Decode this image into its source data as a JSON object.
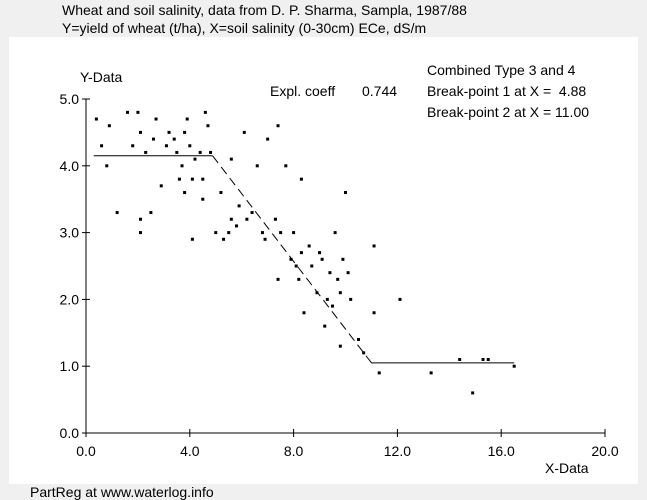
{
  "header": {
    "title_line1": "Wheat and soil salinity, data from D. P. Sharma, Sampla, 1987/88",
    "title_line2": "Y=yield of wheat (t/ha), X=soil salinity (0-30cm) ECe, dS/m"
  },
  "annotations": {
    "expl_coeff_label": "Expl. coeff",
    "expl_coeff_value": "0.744",
    "model_type": "Combined Type 3 and 4",
    "breakpoint1": "Break-point 1 at X =  4.88",
    "breakpoint2": "Break-point 2 at X = 11.00"
  },
  "footer": {
    "text": "PartReg at www.waterlog.info"
  },
  "colors": {
    "window_bg": "#f0f0f0",
    "plot_bg": "#ffffff",
    "ink": "#000000"
  },
  "chart_data": {
    "type": "scatter",
    "xlabel": "X-Data",
    "ylabel": "Y-Data",
    "xlim": [
      0,
      20
    ],
    "ylim": [
      0,
      5
    ],
    "xticks": [
      "0.0",
      "4.0",
      "8.0",
      "12.0",
      "16.0",
      "20.0"
    ],
    "yticks": [
      "0.0",
      "1.0",
      "2.0",
      "3.0",
      "4.0",
      "5.0"
    ],
    "grid": false,
    "points": [
      [
        0.4,
        4.7
      ],
      [
        0.6,
        4.3
      ],
      [
        0.8,
        4.0
      ],
      [
        0.9,
        4.6
      ],
      [
        1.2,
        3.3
      ],
      [
        1.6,
        4.8
      ],
      [
        1.8,
        4.3
      ],
      [
        2.0,
        4.8
      ],
      [
        2.1,
        4.5
      ],
      [
        2.1,
        3.2
      ],
      [
        2.1,
        3.0
      ],
      [
        2.3,
        4.2
      ],
      [
        2.5,
        3.3
      ],
      [
        2.6,
        4.4
      ],
      [
        2.7,
        4.7
      ],
      [
        2.9,
        3.7
      ],
      [
        3.1,
        4.3
      ],
      [
        3.2,
        4.5
      ],
      [
        3.4,
        4.4
      ],
      [
        3.5,
        4.2
      ],
      [
        3.6,
        3.8
      ],
      [
        3.7,
        4.0
      ],
      [
        3.8,
        4.5
      ],
      [
        3.8,
        3.6
      ],
      [
        3.9,
        4.7
      ],
      [
        4.0,
        4.3
      ],
      [
        4.1,
        3.8
      ],
      [
        4.1,
        2.9
      ],
      [
        4.2,
        4.1
      ],
      [
        4.4,
        4.2
      ],
      [
        4.5,
        3.8
      ],
      [
        4.5,
        3.5
      ],
      [
        4.6,
        4.8
      ],
      [
        4.7,
        4.6
      ],
      [
        4.8,
        4.2
      ],
      [
        5.0,
        3.0
      ],
      [
        5.2,
        3.6
      ],
      [
        5.3,
        2.9
      ],
      [
        5.5,
        3.0
      ],
      [
        5.6,
        3.2
      ],
      [
        5.6,
        4.1
      ],
      [
        5.8,
        3.1
      ],
      [
        5.9,
        3.4
      ],
      [
        6.1,
        4.5
      ],
      [
        6.2,
        3.2
      ],
      [
        6.4,
        3.3
      ],
      [
        6.6,
        4.0
      ],
      [
        6.8,
        3.0
      ],
      [
        6.9,
        2.9
      ],
      [
        7.0,
        4.4
      ],
      [
        7.3,
        3.2
      ],
      [
        7.4,
        4.6
      ],
      [
        7.4,
        2.3
      ],
      [
        7.5,
        3.0
      ],
      [
        7.7,
        4.0
      ],
      [
        7.9,
        2.6
      ],
      [
        8.0,
        3.0
      ],
      [
        8.1,
        2.5
      ],
      [
        8.2,
        2.3
      ],
      [
        8.3,
        2.7
      ],
      [
        8.3,
        3.8
      ],
      [
        8.4,
        1.8
      ],
      [
        8.6,
        2.8
      ],
      [
        8.7,
        2.5
      ],
      [
        8.9,
        2.1
      ],
      [
        9.0,
        2.7
      ],
      [
        9.1,
        2.6
      ],
      [
        9.2,
        1.6
      ],
      [
        9.3,
        2.0
      ],
      [
        9.4,
        2.4
      ],
      [
        9.5,
        1.9
      ],
      [
        9.6,
        3.0
      ],
      [
        9.7,
        2.3
      ],
      [
        9.8,
        2.1
      ],
      [
        9.8,
        1.3
      ],
      [
        9.9,
        2.6
      ],
      [
        10.0,
        3.6
      ],
      [
        10.1,
        2.4
      ],
      [
        10.2,
        2.0
      ],
      [
        10.5,
        1.4
      ],
      [
        10.7,
        1.2
      ],
      [
        11.1,
        2.8
      ],
      [
        11.1,
        1.8
      ],
      [
        11.3,
        0.9
      ],
      [
        12.1,
        2.0
      ],
      [
        13.3,
        0.9
      ],
      [
        14.4,
        1.1
      ],
      [
        14.9,
        0.6
      ],
      [
        15.3,
        1.1
      ],
      [
        15.5,
        1.1
      ],
      [
        16.5,
        1.0
      ]
    ],
    "fit": {
      "x": [
        0.3,
        4.88,
        11.0,
        16.5
      ],
      "y": [
        4.15,
        4.15,
        1.05,
        1.05
      ],
      "style": [
        "solid",
        "dashed",
        "solid"
      ]
    }
  }
}
